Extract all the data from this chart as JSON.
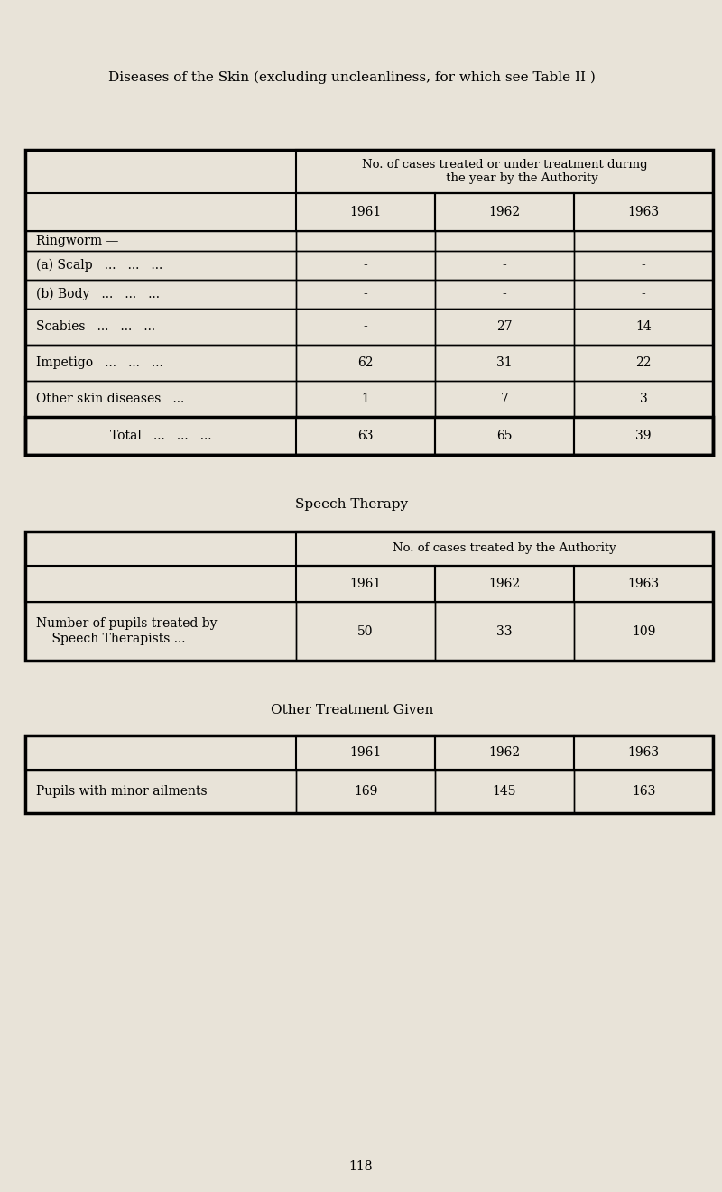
{
  "page_bg": "#e8e3d8",
  "title1": "Diseases of the Skin (excluding uncleanliness, for which see Table II )",
  "table1_header1": "No. of cases treated or under treatment dur­ing\nthe year by the Authority",
  "table1_years": [
    "1961",
    "1962",
    "1963"
  ],
  "table1_row_labels": [
    "Ringworm —",
    "(a) Scalp   ...   ...   ...",
    "(b) Body   ...   ...   ...",
    "Scabies   ...   ...   ...",
    "Impetigo   ...   ...   ...",
    "Other skin diseases   ..."
  ],
  "table1_row_values": [
    [
      "",
      "",
      ""
    ],
    [
      "-",
      "-",
      "-"
    ],
    [
      "-",
      "-",
      "-"
    ],
    [
      "-",
      "27",
      "14"
    ],
    [
      "62",
      "31",
      "22"
    ],
    [
      "1",
      "7",
      "3"
    ]
  ],
  "table1_total_label": "Total   ...   ...   ...",
  "table1_total_values": [
    "63",
    "65",
    "39"
  ],
  "title2": "Speech Therapy",
  "table2_header1": "No. of cases treated by the Authority",
  "table2_years": [
    "1961",
    "1962",
    "1963"
  ],
  "table2_row_label": "Number of pupils treated by\n    Speech Therapists ...",
  "table2_row_values": [
    "50",
    "33",
    "109"
  ],
  "title3": "Other Treatment Given",
  "table3_years": [
    "1961",
    "1962",
    "1963"
  ],
  "table3_row_label": "Pupils with minor ailments",
  "table3_row_values": [
    "169",
    "145",
    "163"
  ],
  "page_number": "118"
}
